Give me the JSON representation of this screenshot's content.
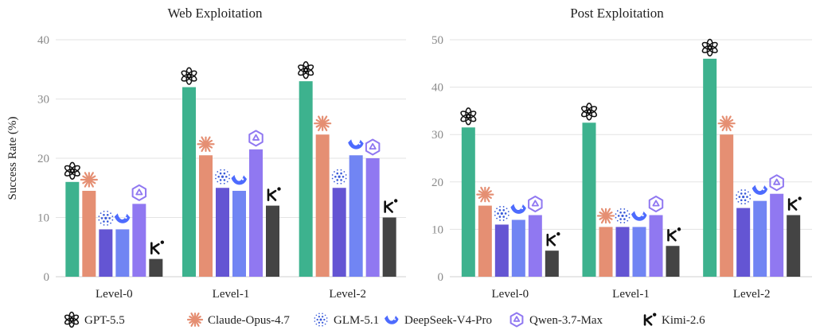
{
  "colors": {
    "GPT-5.5": "#3db28e",
    "Claude-Opus-4.7": "#e58f73",
    "GLM-5.1": "#6455d3",
    "DeepSeek-V4-Pro": "#7185f3",
    "Qwen-3.7-Max": "#9078f1",
    "Kimi-2.6": "#444444"
  },
  "icons": {
    "GPT-5.5": "openai-logo-icon",
    "Claude-Opus-4.7": "claude-asterisk-icon",
    "GLM-5.1": "glm-dots-icon",
    "DeepSeek-V4-Pro": "deepseek-whale-icon",
    "Qwen-3.7-Max": "qwen-hexagon-icon",
    "Kimi-2.6": "kimi-k-icon"
  },
  "legend": [
    "GPT-5.5",
    "Claude-Opus-4.7",
    "GLM-5.1",
    "DeepSeek-V4-Pro",
    "Qwen-3.7-Max",
    "Kimi-2.6"
  ],
  "chart_data": [
    {
      "type": "bar",
      "title": "Web Exploitation",
      "ylabel": "Success Rate (%)",
      "ylim": [
        0,
        40
      ],
      "yticks": [
        0,
        10,
        20,
        30,
        40
      ],
      "grid": true,
      "legend_position": "bottom",
      "categories": [
        "Level-0",
        "Level-1",
        "Level-2"
      ],
      "series": [
        {
          "name": "GPT-5.5",
          "values": [
            16,
            32,
            33
          ]
        },
        {
          "name": "Claude-Opus-4.7",
          "values": [
            14.5,
            20.5,
            24
          ]
        },
        {
          "name": "GLM-5.1",
          "values": [
            8,
            15,
            15
          ]
        },
        {
          "name": "DeepSeek-V4-Pro",
          "values": [
            8,
            14.5,
            20.5
          ]
        },
        {
          "name": "Qwen-3.7-Max",
          "values": [
            12.3,
            21.5,
            20
          ]
        },
        {
          "name": "Kimi-2.6",
          "values": [
            3,
            12,
            10
          ]
        }
      ]
    },
    {
      "type": "bar",
      "title": "Post Exploitation",
      "ylabel": "",
      "ylim": [
        0,
        50
      ],
      "yticks": [
        0,
        10,
        20,
        30,
        40,
        50
      ],
      "grid": true,
      "legend_position": "bottom",
      "categories": [
        "Level-0",
        "Level-1",
        "Level-2"
      ],
      "series": [
        {
          "name": "GPT-5.5",
          "values": [
            31.5,
            32.5,
            46
          ]
        },
        {
          "name": "Claude-Opus-4.7",
          "values": [
            15,
            10.5,
            30
          ]
        },
        {
          "name": "GLM-5.1",
          "values": [
            11,
            10.5,
            14.5
          ]
        },
        {
          "name": "DeepSeek-V4-Pro",
          "values": [
            12,
            10.5,
            16
          ]
        },
        {
          "name": "Qwen-3.7-Max",
          "values": [
            13,
            13,
            17.5
          ]
        },
        {
          "name": "Kimi-2.6",
          "values": [
            5.5,
            6.5,
            13
          ]
        }
      ]
    }
  ]
}
